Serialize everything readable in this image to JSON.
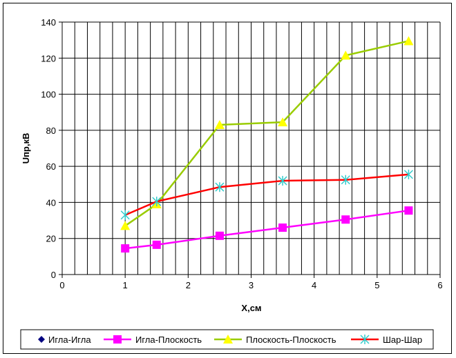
{
  "chart_data": {
    "type": "line",
    "xlabel": "X,см",
    "ylabel": "Uпр,кВ",
    "xlim": [
      0,
      6
    ],
    "ylim": [
      0,
      140
    ],
    "x_ticks": [
      0,
      1,
      2,
      3,
      4,
      5,
      6
    ],
    "y_ticks": [
      0,
      20,
      40,
      60,
      80,
      100,
      120,
      140
    ],
    "x_minor_step": 0.2,
    "grid": true,
    "legend_position": "bottom",
    "series": [
      {
        "name": "Игла-Игла",
        "color": "#000080",
        "marker": "diamond",
        "x": [],
        "y": []
      },
      {
        "name": "Игла-Плоскость",
        "color": "#ff00ff",
        "marker": "square",
        "x": [
          1,
          1.5,
          2.5,
          3.5,
          4.5,
          5.5
        ],
        "y": [
          14.5,
          16.5,
          21.5,
          26,
          30.5,
          35.5
        ]
      },
      {
        "name": "Плоскость-Плоскость",
        "color": "#99cc00",
        "marker_color": "#ffff00",
        "marker": "triangle",
        "x": [
          1,
          1.5,
          2.5,
          3.5,
          4.5,
          5.5
        ],
        "y": [
          27,
          39,
          83,
          84.5,
          121.5,
          129.5
        ]
      },
      {
        "name": "Шар-Шар",
        "color": "#ff0000",
        "marker_color": "#33cccc",
        "marker": "star",
        "x": [
          1,
          1.5,
          2.5,
          3.5,
          4.5,
          5.5
        ],
        "y": [
          33,
          40.5,
          48.5,
          52,
          52.5,
          55.5
        ]
      }
    ]
  }
}
